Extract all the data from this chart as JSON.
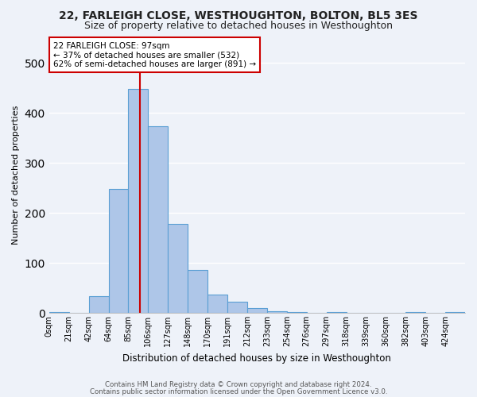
{
  "title": "22, FARLEIGH CLOSE, WESTHOUGHTON, BOLTON, BL5 3ES",
  "subtitle": "Size of property relative to detached houses in Westhoughton",
  "xlabel": "Distribution of detached houses by size in Westhoughton",
  "ylabel": "Number of detached properties",
  "bin_labels": [
    "0sqm",
    "21sqm",
    "42sqm",
    "64sqm",
    "85sqm",
    "106sqm",
    "127sqm",
    "148sqm",
    "170sqm",
    "191sqm",
    "212sqm",
    "233sqm",
    "254sqm",
    "276sqm",
    "297sqm",
    "318sqm",
    "339sqm",
    "360sqm",
    "382sqm",
    "403sqm",
    "424sqm"
  ],
  "bar_heights": [
    2,
    0,
    33,
    248,
    448,
    373,
    177,
    85,
    36,
    22,
    10,
    3,
    1,
    0,
    1,
    0,
    0,
    0,
    1,
    0,
    1
  ],
  "bar_color": "#aec6e8",
  "bar_edge_color": "#5a9fd4",
  "vline_color": "#cc0000",
  "annotation_text": "22 FARLEIGH CLOSE: 97sqm\n← 37% of detached houses are smaller (532)\n62% of semi-detached houses are larger (891) →",
  "annotation_box_color": "#ffffff",
  "annotation_box_edge": "#cc0000",
  "ylim": [
    0,
    550
  ],
  "footer1": "Contains HM Land Registry data © Crown copyright and database right 2024.",
  "footer2": "Contains public sector information licensed under the Open Government Licence v3.0.",
  "background_color": "#eef2f9",
  "grid_color": "#ffffff",
  "title_fontsize": 10,
  "subtitle_fontsize": 9,
  "bin_edges": [
    0,
    21,
    42,
    64,
    85,
    106,
    127,
    148,
    170,
    191,
    212,
    233,
    254,
    276,
    297,
    318,
    339,
    360,
    382,
    403,
    424
  ],
  "property_sqm": 97
}
